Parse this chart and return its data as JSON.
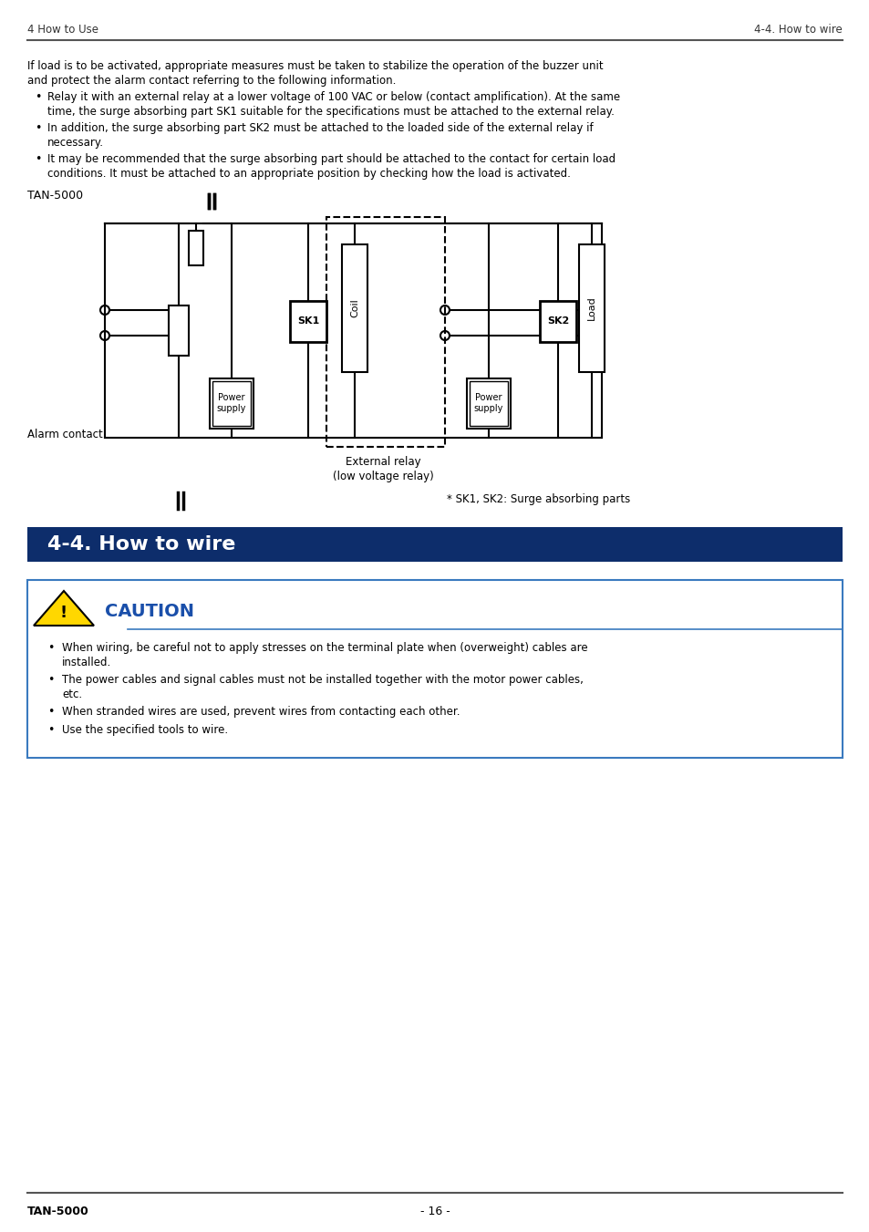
{
  "page_header_left": "4 How to Use",
  "page_header_right": "4-4. How to wire",
  "intro_text_line1": "If load is to be activated, appropriate measures must be taken to stabilize the operation of the buzzer unit",
  "intro_text_line2": "and protect the alarm contact referring to the following information.",
  "bullet1_line1": "Relay it with an external relay at a lower voltage of 100 VAC or below (contact amplification). At the same",
  "bullet1_line2": "time, the surge absorbing part SK1 suitable for the specifications must be attached to the external relay.",
  "bullet2_line1": "In addition, the surge absorbing part SK2 must be attached to the loaded side of the external relay if",
  "bullet2_line2": "necessary.",
  "bullet3_line1": "It may be recommended that the surge absorbing part should be attached to the contact for certain load",
  "bullet3_line2": "conditions. It must be attached to an appropriate position by checking how the load is activated.",
  "diagram_label": "TAN-5000",
  "alarm_contact_label": "Alarm contact",
  "external_relay_label_1": "External relay",
  "external_relay_label_2": "(low voltage relay)",
  "sk_note": "* SK1, SK2: Surge absorbing parts",
  "section_title": "4-4. How to wire",
  "section_bg": "#0d2d6b",
  "section_text_color": "#ffffff",
  "caution_title": "CAUTION",
  "caution_title_color": "#1a4faa",
  "caution_box_border": "#3a7abf",
  "caution_bullet1_1": "When wiring, be careful not to apply stresses on the terminal plate when (overweight) cables are",
  "caution_bullet1_2": "installed.",
  "caution_bullet2_1": "The power cables and signal cables must not be installed together with the motor power cables,",
  "caution_bullet2_2": "etc.",
  "caution_bullet3": "When stranded wires are used, prevent wires from contacting each other.",
  "caution_bullet4": "Use the specified tools to wire.",
  "footer_left": "TAN-5000",
  "footer_center": "- 16 -",
  "bg_color": "#ffffff",
  "text_color": "#000000",
  "header_line_color": "#555555"
}
